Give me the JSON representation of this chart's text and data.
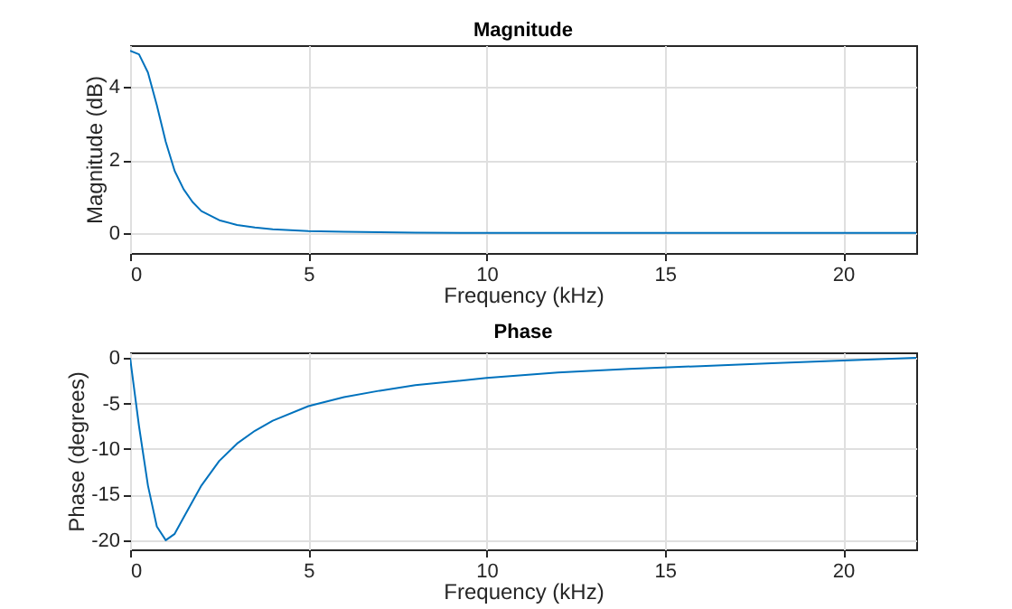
{
  "chart_data": [
    {
      "type": "line",
      "title": "Magnitude",
      "xlabel": "Frequency (kHz)",
      "ylabel": "Magnitude (dB)",
      "x": [
        0,
        0.25,
        0.5,
        0.75,
        1,
        1.25,
        1.5,
        1.75,
        2,
        2.5,
        3,
        3.5,
        4,
        5,
        6,
        7,
        8,
        10,
        12,
        15,
        18,
        22.05
      ],
      "values": [
        5.0,
        4.9,
        4.4,
        3.5,
        2.5,
        1.7,
        1.2,
        0.85,
        0.6,
        0.35,
        0.22,
        0.15,
        0.1,
        0.05,
        0.03,
        0.02,
        0.01,
        0,
        0,
        0,
        0,
        0
      ],
      "color": "#0072bd",
      "xlim": [
        0,
        22.05
      ],
      "ylim": [
        -0.55,
        5.15
      ],
      "xticks": [
        0,
        5,
        10,
        15,
        20
      ],
      "yticks": [
        0,
        2,
        4
      ],
      "grid": true
    },
    {
      "type": "line",
      "title": "Phase",
      "xlabel": "Frequency (kHz)",
      "ylabel": "Phase (degrees)",
      "x": [
        0,
        0.25,
        0.5,
        0.75,
        1,
        1.25,
        1.5,
        2,
        2.5,
        3,
        3.5,
        4,
        5,
        6,
        7,
        8,
        10,
        12,
        14,
        16,
        18,
        20,
        22.05
      ],
      "values": [
        0,
        -7.5,
        -14,
        -18.5,
        -20,
        -19.3,
        -17.5,
        -14,
        -11.3,
        -9.4,
        -8,
        -6.9,
        -5.3,
        -4.3,
        -3.6,
        -3,
        -2.2,
        -1.6,
        -1.2,
        -0.9,
        -0.6,
        -0.3,
        0
      ],
      "color": "#0072bd",
      "xlim": [
        0,
        22.05
      ],
      "ylim": [
        -21,
        0.6
      ],
      "xticks": [
        0,
        5,
        10,
        15,
        20
      ],
      "yticks": [
        -20,
        -15,
        -10,
        -5,
        0
      ],
      "grid": true
    }
  ]
}
